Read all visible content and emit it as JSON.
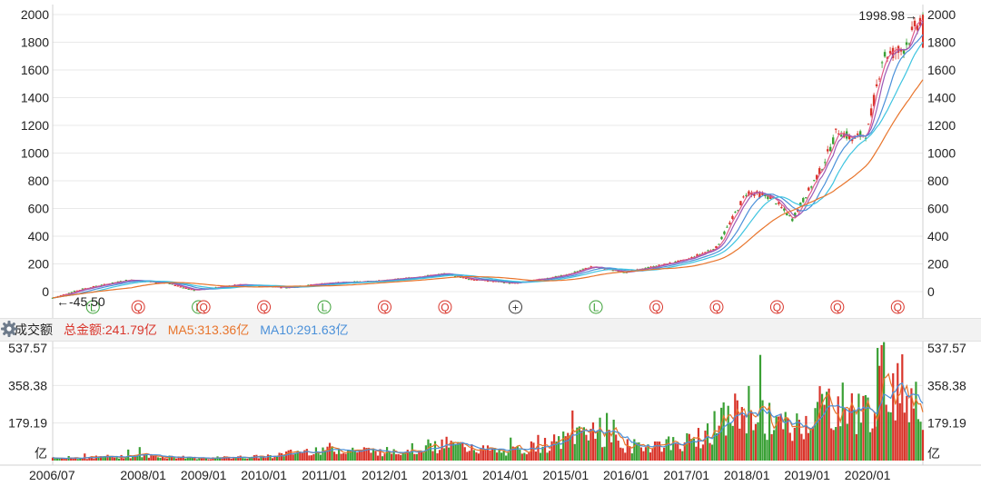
{
  "chart_data": {
    "type": "candlestick-with-volume",
    "price_panel": {
      "y_ticks": [
        0,
        200,
        400,
        600,
        800,
        1000,
        1200,
        1400,
        1600,
        1800,
        2000
      ],
      "ylim": [
        -80,
        2010
      ],
      "last_value_label": "1998.98→",
      "low_value_label": "←-45.50",
      "approx_price_path": [
        {
          "date": "2006/07",
          "value": -45
        },
        {
          "date": "2007/01",
          "value": 20
        },
        {
          "date": "2007/10",
          "value": 85
        },
        {
          "date": "2008/06",
          "value": 60
        },
        {
          "date": "2008/11",
          "value": 10
        },
        {
          "date": "2009/08",
          "value": 50
        },
        {
          "date": "2010/06",
          "value": 30
        },
        {
          "date": "2011/01",
          "value": 60
        },
        {
          "date": "2012/01",
          "value": 80
        },
        {
          "date": "2013/01",
          "value": 130
        },
        {
          "date": "2013/06",
          "value": 90
        },
        {
          "date": "2014/03",
          "value": 60
        },
        {
          "date": "2015/01",
          "value": 120
        },
        {
          "date": "2015/06",
          "value": 180
        },
        {
          "date": "2016/01",
          "value": 140
        },
        {
          "date": "2017/01",
          "value": 230
        },
        {
          "date": "2017/07",
          "value": 320
        },
        {
          "date": "2018/01",
          "value": 720
        },
        {
          "date": "2018/06",
          "value": 680
        },
        {
          "date": "2018/10",
          "value": 520
        },
        {
          "date": "2019/04",
          "value": 900
        },
        {
          "date": "2019/07",
          "value": 1170
        },
        {
          "date": "2019/10",
          "value": 1100
        },
        {
          "date": "2020/01",
          "value": 1150
        },
        {
          "date": "2020/04",
          "value": 1700
        },
        {
          "date": "2020/08",
          "value": 1750
        },
        {
          "date": "2020/12",
          "value": 1998.98
        }
      ],
      "markers": [
        "L",
        "Q",
        "L",
        "Q",
        "Q",
        "L",
        "Q",
        "Q",
        "+",
        "L",
        "Q",
        "Q",
        "Q",
        "Q",
        "Q"
      ],
      "marker_dates": [
        "2007/03",
        "2007/12",
        "2008/12",
        "2009/01",
        "2010/01",
        "2011/01",
        "2012/01",
        "2013/01",
        "2014/03",
        "2015/07",
        "2016/07",
        "2017/07",
        "2018/07",
        "2019/07",
        "2020/07"
      ]
    },
    "volume_panel": {
      "title": "成交额",
      "total_label": "总金额:241.79亿",
      "ma5_label": "MA5:313.36亿",
      "ma10_label": "MA10:291.63亿",
      "y_ticks": [
        "537.57",
        "358.38",
        "179.19"
      ],
      "unit_label": "亿",
      "ylim": [
        0,
        537.57
      ],
      "approx_volume_envelope": [
        {
          "date": "2006/07",
          "value": 10
        },
        {
          "date": "2008/01",
          "value": 25
        },
        {
          "date": "2009/01",
          "value": 12
        },
        {
          "date": "2010/01",
          "value": 20
        },
        {
          "date": "2011/01",
          "value": 60
        },
        {
          "date": "2012/01",
          "value": 45
        },
        {
          "date": "2013/01",
          "value": 80
        },
        {
          "date": "2014/01",
          "value": 40
        },
        {
          "date": "2015/01",
          "value": 100
        },
        {
          "date": "2015/06",
          "value": 170
        },
        {
          "date": "2016/01",
          "value": 70
        },
        {
          "date": "2017/01",
          "value": 90
        },
        {
          "date": "2018/01",
          "value": 260
        },
        {
          "date": "2018/10",
          "value": 150
        },
        {
          "date": "2019/04",
          "value": 280
        },
        {
          "date": "2020/01",
          "value": 240
        },
        {
          "date": "2020/04",
          "value": 400
        },
        {
          "date": "2020/12",
          "value": 320
        }
      ]
    },
    "x_ticks": [
      "2006/07",
      "2008/01",
      "2009/01",
      "2010/01",
      "2011/01",
      "2012/01",
      "2013/01",
      "2014/01",
      "2015/01",
      "2016/01",
      "2017/01",
      "2018/01",
      "2019/01",
      "2020/01"
    ],
    "colors": {
      "up": "#d9352b",
      "down": "#3aa035",
      "ma_orange": "#e8742b",
      "ma_blue": "#4a90d9",
      "ma_cyan": "#3ec4e0",
      "ma_purple": "#9b59b6",
      "ma_pink": "#e05a8a",
      "grid": "#e9e9e9",
      "marker_red": "#d9352b",
      "marker_green": "#3aa035"
    }
  }
}
